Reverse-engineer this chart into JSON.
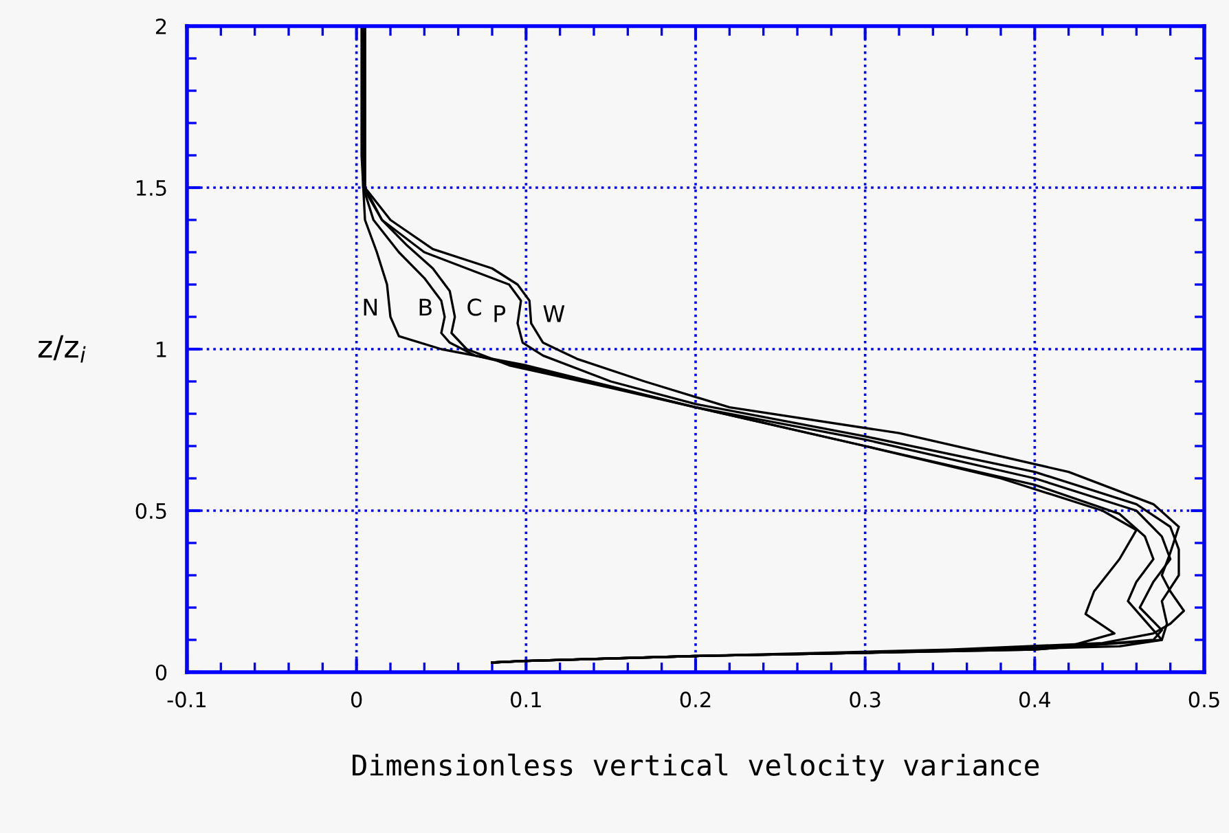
{
  "chart_data": {
    "type": "line",
    "xlabel": "Dimensionless vertical velocity variance",
    "ylabel": "z/z$_{i}$",
    "xlim": [
      -0.1,
      0.5
    ],
    "xticks": [
      -0.1,
      0,
      0.1,
      0.2,
      0.3,
      0.4,
      0.5
    ],
    "ylim": [
      0,
      2
    ],
    "yticks": [
      0,
      0.5,
      1,
      1.5,
      2
    ],
    "grid": true,
    "marker": "none",
    "line_style": "solid",
    "series": [
      {
        "name": "N",
        "color": "#000000",
        "x": [
          0.003,
          0.003,
          0.005,
          0.012,
          0.018,
          0.02,
          0.025,
          0.05,
          0.1,
          0.2,
          0.3,
          0.38,
          0.44,
          0.46,
          0.45,
          0.435,
          0.43,
          0.447,
          0.42,
          0.3,
          0.2,
          0.1,
          0.08
        ],
        "values": [
          2,
          1.6,
          1.4,
          1.3,
          1.2,
          1.1,
          1.04,
          1.0,
          0.95,
          0.82,
          0.7,
          0.6,
          0.5,
          0.44,
          0.35,
          0.25,
          0.18,
          0.12,
          0.08,
          0.06,
          0.05,
          0.035,
          0.03
        ]
      },
      {
        "name": "B",
        "color": "#000000",
        "x": [
          0.004,
          0.004,
          0.01,
          0.025,
          0.04,
          0.05,
          0.052,
          0.05,
          0.055,
          0.07,
          0.12,
          0.2,
          0.3,
          0.4,
          0.45,
          0.465,
          0.47,
          0.46,
          0.455,
          0.465,
          0.475,
          0.45,
          0.3,
          0.2,
          0.1,
          0.08
        ],
        "values": [
          2,
          1.5,
          1.4,
          1.3,
          1.22,
          1.15,
          1.1,
          1.05,
          1.02,
          0.98,
          0.92,
          0.82,
          0.7,
          0.58,
          0.49,
          0.42,
          0.35,
          0.28,
          0.22,
          0.16,
          0.1,
          0.08,
          0.06,
          0.05,
          0.035,
          0.03
        ]
      },
      {
        "name": "C",
        "color": "#000000",
        "x": [
          0.005,
          0.005,
          0.015,
          0.03,
          0.045,
          0.055,
          0.058,
          0.056,
          0.065,
          0.09,
          0.15,
          0.2,
          0.3,
          0.4,
          0.46,
          0.475,
          0.48,
          0.47,
          0.462,
          0.475,
          0.47,
          0.4,
          0.3,
          0.2,
          0.1,
          0.08
        ],
        "values": [
          2,
          1.5,
          1.4,
          1.32,
          1.25,
          1.18,
          1.1,
          1.05,
          1.0,
          0.95,
          0.88,
          0.82,
          0.72,
          0.6,
          0.5,
          0.42,
          0.35,
          0.28,
          0.2,
          0.13,
          0.1,
          0.07,
          0.06,
          0.05,
          0.035,
          0.03
        ]
      },
      {
        "name": "P",
        "color": "#000000",
        "x": [
          0.004,
          0.004,
          0.015,
          0.04,
          0.07,
          0.09,
          0.097,
          0.095,
          0.098,
          0.11,
          0.15,
          0.2,
          0.3,
          0.4,
          0.46,
          0.48,
          0.485,
          0.485,
          0.475,
          0.478,
          0.475,
          0.4,
          0.3,
          0.2,
          0.1,
          0.08
        ],
        "values": [
          2,
          1.5,
          1.4,
          1.3,
          1.24,
          1.2,
          1.15,
          1.08,
          1.02,
          0.98,
          0.9,
          0.83,
          0.73,
          0.62,
          0.52,
          0.45,
          0.38,
          0.3,
          0.22,
          0.15,
          0.1,
          0.07,
          0.06,
          0.05,
          0.035,
          0.03
        ]
      },
      {
        "name": "W",
        "color": "#000000",
        "x": [
          0.005,
          0.005,
          0.02,
          0.045,
          0.08,
          0.095,
          0.102,
          0.103,
          0.11,
          0.13,
          0.17,
          0.22,
          0.32,
          0.42,
          0.47,
          0.485,
          0.48,
          0.475,
          0.48,
          0.488,
          0.48,
          0.47,
          0.44,
          0.35,
          0.2,
          0.1,
          0.08
        ],
        "values": [
          2,
          1.5,
          1.4,
          1.31,
          1.25,
          1.2,
          1.15,
          1.08,
          1.02,
          0.97,
          0.9,
          0.82,
          0.74,
          0.62,
          0.52,
          0.45,
          0.37,
          0.3,
          0.25,
          0.19,
          0.15,
          0.12,
          0.09,
          0.07,
          0.05,
          0.035,
          0.03
        ]
      }
    ]
  }
}
